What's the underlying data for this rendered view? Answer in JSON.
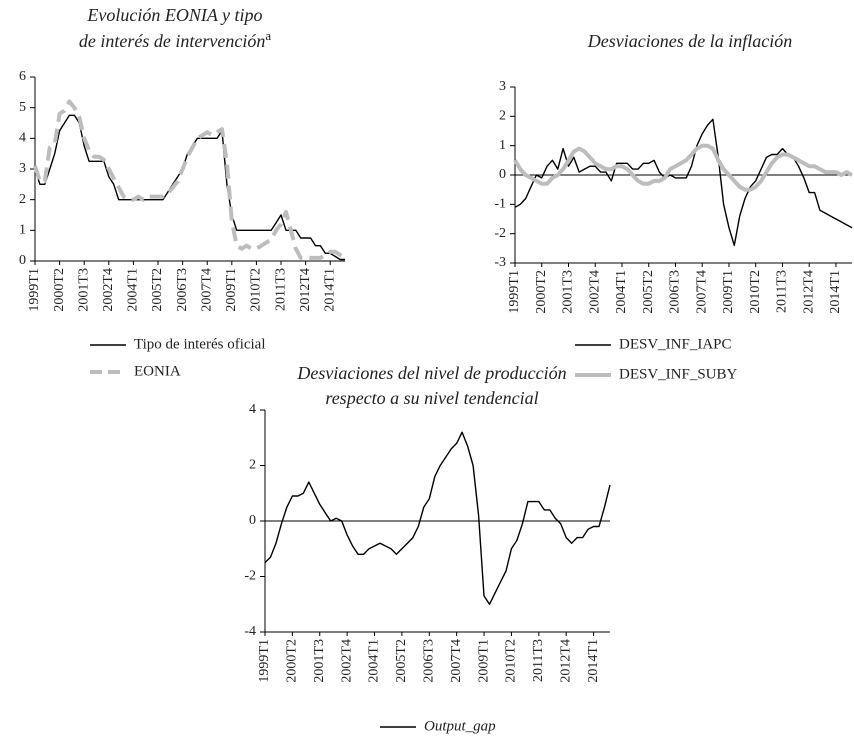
{
  "chart_data": [
    {
      "type": "line",
      "title": [
        "Evolución EONIA y tipo",
        "de interés de intervención"
      ],
      "title_superscript": "a",
      "categories": [
        "1999T1",
        null,
        null,
        null,
        null,
        "2000T2",
        null,
        null,
        null,
        null,
        "2001T3",
        null,
        null,
        null,
        null,
        "2002T4",
        null,
        null,
        null,
        null,
        "2004T1",
        null,
        null,
        null,
        null,
        "2005T2",
        null,
        null,
        null,
        null,
        "2006T3",
        null,
        null,
        null,
        null,
        "2007T4",
        null,
        null,
        null,
        null,
        "2009T1",
        null,
        null,
        null,
        null,
        "2010T2",
        null,
        null,
        null,
        null,
        "2011T3",
        null,
        null,
        null,
        null,
        "2012T4",
        null,
        null,
        null,
        null,
        "2014T1",
        null,
        null,
        null
      ],
      "series": [
        {
          "name": "Tipo de interés oficial",
          "color": "#000000",
          "dashed": false,
          "values": [
            3.0,
            2.5,
            2.5,
            3.0,
            3.5,
            4.25,
            4.5,
            4.75,
            4.75,
            4.5,
            3.75,
            3.25,
            3.25,
            3.25,
            3.25,
            2.75,
            2.5,
            2.0,
            2.0,
            2.0,
            2.0,
            2.0,
            2.0,
            2.0,
            2.0,
            2.0,
            2.0,
            2.25,
            2.5,
            2.75,
            3.0,
            3.5,
            3.75,
            4.0,
            4.0,
            4.0,
            4.0,
            4.0,
            4.25,
            2.5,
            1.5,
            1.0,
            1.0,
            1.0,
            1.0,
            1.0,
            1.0,
            1.0,
            1.0,
            1.25,
            1.5,
            1.0,
            1.0,
            1.0,
            0.75,
            0.75,
            0.75,
            0.5,
            0.5,
            0.25,
            0.25,
            0.15,
            0.05,
            0.05
          ]
        },
        {
          "name": "EONIA",
          "color": "#bdbdbd",
          "dashed": true,
          "values": [
            3.1,
            2.6,
            2.6,
            3.7,
            3.8,
            4.8,
            4.9,
            5.2,
            5.0,
            4.7,
            4.0,
            3.6,
            3.4,
            3.4,
            3.3,
            3.0,
            2.7,
            2.4,
            2.1,
            2.0,
            2.0,
            2.1,
            2.0,
            2.1,
            2.1,
            2.1,
            2.1,
            2.2,
            2.4,
            2.6,
            3.0,
            3.4,
            3.7,
            4.0,
            4.1,
            4.2,
            4.1,
            4.2,
            4.3,
            3.2,
            1.3,
            0.5,
            0.4,
            0.5,
            0.4,
            0.4,
            0.5,
            0.6,
            0.7,
            1.0,
            1.2,
            1.6,
            1.0,
            0.4,
            0.1,
            0.1,
            0.1,
            0.1,
            0.1,
            0.2,
            0.3,
            0.3,
            0.2,
            0.1
          ]
        }
      ],
      "ylim": [
        0,
        6
      ],
      "yticks": [
        0,
        1,
        2,
        3,
        4,
        5,
        6
      ],
      "zero_line": false
    },
    {
      "type": "line",
      "title": [
        "Desviaciones de la inflación"
      ],
      "categories": [
        "1999T1",
        null,
        null,
        null,
        null,
        "2000T2",
        null,
        null,
        null,
        null,
        "2001T3",
        null,
        null,
        null,
        null,
        "2002T4",
        null,
        null,
        null,
        null,
        "2004T1",
        null,
        null,
        null,
        null,
        "2005T2",
        null,
        null,
        null,
        null,
        "2006T3",
        null,
        null,
        null,
        null,
        "2007T4",
        null,
        null,
        null,
        null,
        "2009T1",
        null,
        null,
        null,
        null,
        "2010T2",
        null,
        null,
        null,
        null,
        "2011T3",
        null,
        null,
        null,
        null,
        "2012T4",
        null,
        null,
        null,
        null,
        "2014T1",
        null,
        null,
        null
      ],
      "series": [
        {
          "name": "DESV_INF_IAPC",
          "color": "#000000",
          "dashed": false,
          "values": [
            -1.1,
            -1.0,
            -0.8,
            -0.4,
            0.0,
            -0.1,
            0.3,
            0.5,
            0.2,
            0.9,
            0.3,
            0.6,
            0.1,
            0.2,
            0.3,
            0.3,
            0.1,
            0.1,
            -0.2,
            0.4,
            0.4,
            0.4,
            0.2,
            0.2,
            0.4,
            0.4,
            0.5,
            0.1,
            -0.1,
            0.0,
            -0.1,
            -0.1,
            -0.1,
            0.3,
            1.0,
            1.4,
            1.7,
            1.9,
            0.6,
            -1.0,
            -1.8,
            -2.4,
            -1.4,
            -0.8,
            -0.4,
            -0.2,
            0.2,
            0.6,
            0.7,
            0.7,
            0.9,
            0.7,
            0.6,
            0.3,
            -0.1,
            -0.6,
            -0.6,
            -1.2,
            -1.3,
            -1.4,
            -1.5,
            -1.6,
            -1.7,
            -1.8
          ]
        },
        {
          "name": "DESV_INF_SUBY",
          "color": "#bdbdbd",
          "dashed": false,
          "values": [
            0.5,
            0.2,
            0.0,
            -0.1,
            -0.2,
            -0.3,
            -0.3,
            -0.1,
            0.0,
            0.2,
            0.5,
            0.8,
            0.9,
            0.8,
            0.6,
            0.4,
            0.3,
            0.2,
            0.2,
            0.3,
            0.3,
            0.2,
            0.0,
            -0.2,
            -0.3,
            -0.3,
            -0.2,
            -0.2,
            -0.1,
            0.2,
            0.3,
            0.4,
            0.5,
            0.7,
            0.9,
            1.0,
            1.0,
            0.9,
            0.5,
            0.2,
            0.0,
            -0.2,
            -0.4,
            -0.5,
            -0.5,
            -0.4,
            -0.2,
            0.1,
            0.4,
            0.6,
            0.7,
            0.7,
            0.6,
            0.5,
            0.4,
            0.3,
            0.3,
            0.2,
            0.1,
            0.1,
            0.1,
            0.0,
            0.1,
            0.0
          ]
        }
      ],
      "ylim": [
        -3,
        3
      ],
      "yticks": [
        -3,
        -2,
        -1,
        0,
        1,
        2,
        3
      ],
      "zero_line": true
    },
    {
      "type": "line",
      "title": [
        "Desviaciones del nivel de producción",
        "respecto a su nivel tendencial"
      ],
      "categories": [
        "1999T1",
        null,
        null,
        null,
        null,
        "2000T2",
        null,
        null,
        null,
        null,
        "2001T3",
        null,
        null,
        null,
        null,
        "2002T4",
        null,
        null,
        null,
        null,
        "2004T1",
        null,
        null,
        null,
        null,
        "2005T2",
        null,
        null,
        null,
        null,
        "2006T3",
        null,
        null,
        null,
        null,
        "2007T4",
        null,
        null,
        null,
        null,
        "2009T1",
        null,
        null,
        null,
        null,
        "2010T2",
        null,
        null,
        null,
        null,
        "2011T3",
        null,
        null,
        null,
        null,
        "2012T4",
        null,
        null,
        null,
        null,
        "2014T1",
        null,
        null,
        null
      ],
      "series": [
        {
          "name": "Output_gap",
          "color": "#000000",
          "dashed": false,
          "values": [
            -1.5,
            -1.3,
            -0.8,
            -0.1,
            0.5,
            0.9,
            0.9,
            1.0,
            1.4,
            1.0,
            0.6,
            0.3,
            0.0,
            0.1,
            0.0,
            -0.5,
            -0.9,
            -1.2,
            -1.2,
            -1.0,
            -0.9,
            -0.8,
            -0.9,
            -1.0,
            -1.2,
            -1.0,
            -0.8,
            -0.6,
            -0.2,
            0.5,
            0.8,
            1.6,
            2.0,
            2.3,
            2.6,
            2.8,
            3.2,
            2.7,
            2.0,
            0.2,
            -2.7,
            -3.0,
            -2.6,
            -2.2,
            -1.8,
            -1.0,
            -0.7,
            -0.1,
            0.7,
            0.7,
            0.7,
            0.4,
            0.4,
            0.1,
            -0.1,
            -0.6,
            -0.8,
            -0.6,
            -0.6,
            -0.3,
            -0.2,
            -0.2,
            0.5,
            1.3
          ]
        }
      ],
      "ylim": [
        -4,
        4
      ],
      "yticks": [
        -4,
        -2,
        0,
        2,
        4
      ],
      "zero_line": true
    }
  ]
}
